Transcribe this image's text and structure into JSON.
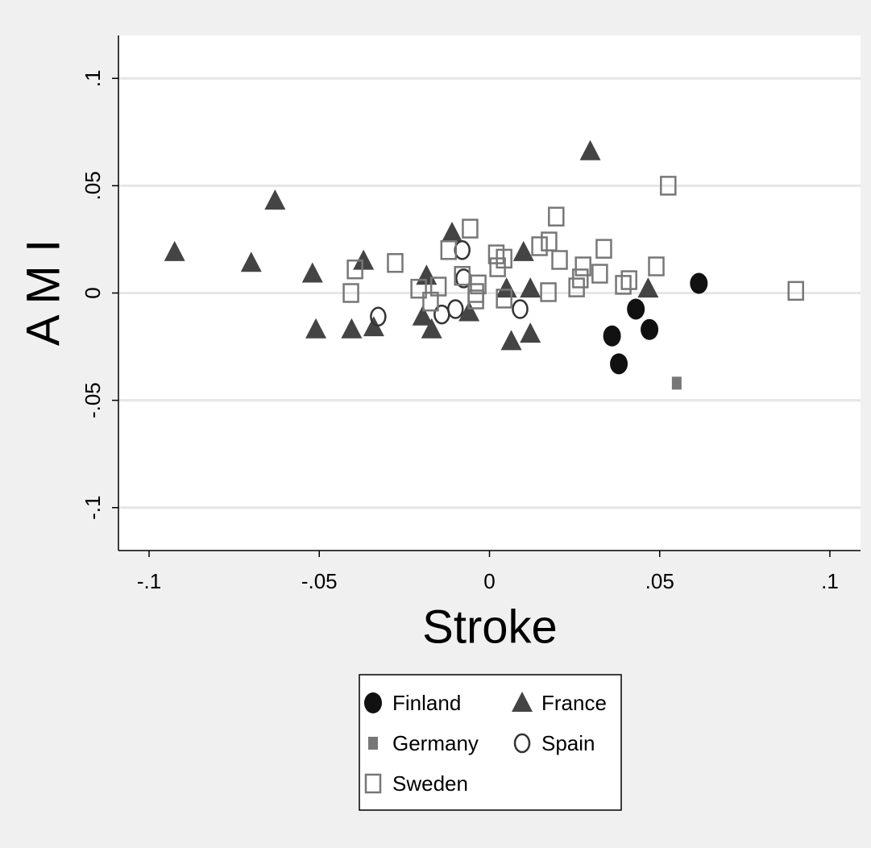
{
  "chart_data": {
    "type": "scatter",
    "x_label": "Stroke",
    "y_label": "A M I",
    "xlim": [
      -0.109,
      0.109
    ],
    "ylim": [
      -0.12,
      0.12
    ],
    "xticks": [
      {
        "value": -0.1,
        "label": "-.1"
      },
      {
        "value": -0.05,
        "label": "-.05"
      },
      0,
      {
        "value": 0.05,
        "label": ".05"
      },
      {
        "value": 0.1,
        "label": ".1"
      }
    ],
    "yticks": [
      {
        "value": -0.1,
        "label": "-.1"
      },
      {
        "value": -0.05,
        "label": "-.05"
      },
      0,
      {
        "value": 0.05,
        "label": ".05"
      },
      {
        "value": 0.1,
        "label": ".1"
      }
    ],
    "grid": true,
    "series": [
      {
        "name": "Finland",
        "color": "#111111",
        "marker": "circle-filled",
        "x": [
          0.0615,
          0.043,
          0.036,
          0.047,
          0.038
        ],
        "y": [
          0.0045,
          -0.0075,
          -0.02,
          -0.017,
          -0.033
        ]
      },
      {
        "name": "France",
        "color": "#444444",
        "marker": "triangle",
        "x": [
          -0.0925,
          -0.07,
          -0.063,
          -0.052,
          -0.051,
          -0.0405,
          -0.037,
          -0.034,
          -0.0185,
          -0.0196,
          -0.017,
          -0.011,
          -0.006,
          0.005,
          0.0064,
          0.01,
          0.012,
          0.012,
          0.0296,
          0.0466
        ],
        "y": [
          0.019,
          0.014,
          0.043,
          0.009,
          -0.017,
          -0.017,
          0.015,
          -0.016,
          0.008,
          -0.011,
          -0.017,
          0.028,
          -0.009,
          0.002,
          -0.0225,
          0.019,
          0.002,
          -0.019,
          0.066,
          0.002
        ]
      },
      {
        "name": "Germany",
        "color": "#777777",
        "marker": "square-small",
        "x": [
          0.055
        ],
        "y": [
          -0.042
        ]
      },
      {
        "name": "Spain",
        "color": "#333333",
        "marker": "circle-hollow",
        "x": [
          -0.0327,
          -0.014,
          -0.01,
          -0.008,
          -0.0076,
          0.009
        ],
        "y": [
          -0.011,
          -0.01,
          -0.0075,
          0.02,
          0.0068,
          -0.0075
        ]
      },
      {
        "name": "Sweden",
        "color": "#777777",
        "marker": "square-hollow",
        "x": [
          0.0525,
          0.09,
          -0.0407,
          -0.0395,
          -0.0277,
          -0.0208,
          -0.0173,
          -0.015,
          -0.012,
          -0.0057,
          -0.008,
          -0.004,
          -0.0033,
          0.002,
          0.0024,
          0.0043,
          0.0043,
          0.0147,
          0.0175,
          0.0173,
          0.0196,
          0.0206,
          0.0256,
          0.0267,
          0.0275,
          0.0324,
          0.0336,
          0.0393,
          0.041,
          0.049,
          -0.004
        ],
        "y": [
          0.05,
          0.001,
          0.0,
          0.011,
          0.014,
          0.002,
          -0.004,
          0.003,
          0.02,
          0.03,
          0.008,
          -0.003,
          0.004,
          0.018,
          0.012,
          0.016,
          -0.0026,
          0.0218,
          0.024,
          0.0004,
          0.0356,
          0.0154,
          0.0026,
          0.0068,
          0.0124,
          0.009,
          0.0206,
          0.0038,
          0.006,
          0.0124,
          0.0
        ]
      }
    ]
  }
}
